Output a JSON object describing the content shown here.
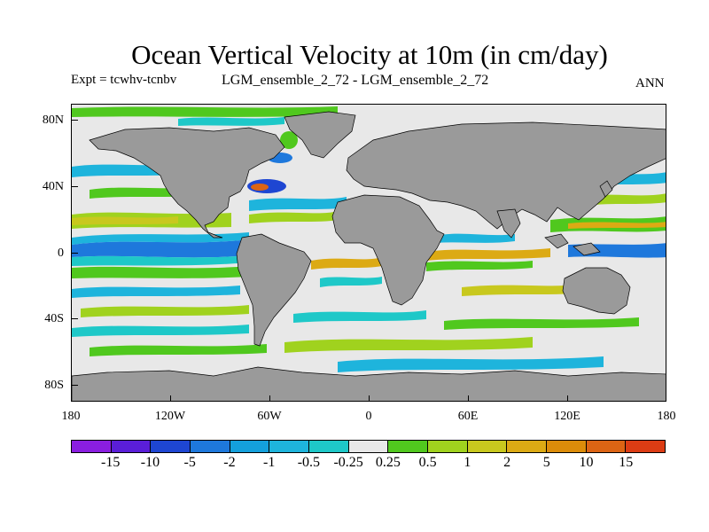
{
  "title": "Ocean Vertical Velocity at 10m (in cm/day)",
  "expt_label": "Expt = tcwhv-tcnbv",
  "case_label": "LGM_ensemble_2_72 - LGM_ensemble_2_72",
  "season_label": "ANN",
  "lat_labels": [
    "80N",
    "40N",
    "0",
    "40S",
    "80S"
  ],
  "lon_labels": [
    "180",
    "120W",
    "60W",
    "0",
    "60E",
    "120E",
    "180"
  ],
  "colorbar": {
    "colors": [
      "#8a1ee0",
      "#5a1ed8",
      "#1e46d2",
      "#1e78dc",
      "#14a0dc",
      "#1eb4dc",
      "#1ec8c8",
      "#e8e8e8",
      "#50c81e",
      "#a0d21e",
      "#c8c81e",
      "#dcaa14",
      "#dc8c0a",
      "#dc6414",
      "#dc3c14"
    ],
    "labels": [
      "-15",
      "-10",
      "-5",
      "-2",
      "-1",
      "-0.5",
      "-0.25",
      "0.25",
      "0.5",
      "1",
      "2",
      "5",
      "10",
      "15"
    ]
  },
  "map": {
    "land_color": "#9a9a9a",
    "ocean_color": "#e8e8e8"
  }
}
